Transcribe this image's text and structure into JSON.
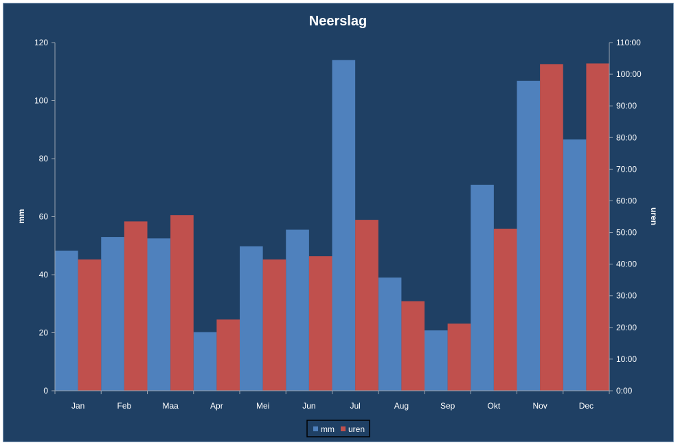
{
  "chart_data": {
    "type": "bar",
    "title": "Neerslag",
    "categories": [
      "Jan",
      "Feb",
      "Maa",
      "Apr",
      "Mei",
      "Jun",
      "Jul",
      "Aug",
      "Sep",
      "Okt",
      "Nov",
      "Dec"
    ],
    "y_left": {
      "label": "mm",
      "range": [
        0,
        120
      ],
      "ticks": [
        "0",
        "20",
        "40",
        "60",
        "80",
        "100",
        "120"
      ]
    },
    "y_right": {
      "label": "uren",
      "range_hours": [
        0,
        110
      ],
      "ticks": [
        "0:00",
        "10:00",
        "20:00",
        "30:00",
        "40:00",
        "50:00",
        "60:00",
        "70:00",
        "80:00",
        "90:00",
        "100:00",
        "110:00"
      ]
    },
    "series": [
      {
        "name": "mm",
        "axis": "left",
        "color": "#4f81bd",
        "values": [
          48.3,
          53.0,
          52.5,
          20.2,
          49.8,
          55.5,
          114.0,
          39.0,
          20.8,
          71.0,
          106.8,
          86.6
        ]
      },
      {
        "name": "uren",
        "axis": "right",
        "color": "#c0504d",
        "values": [
          41.5,
          53.5,
          55.5,
          22.5,
          41.5,
          42.5,
          54.0,
          28.3,
          21.2,
          51.2,
          103.2,
          103.4
        ]
      }
    ],
    "legend_position": "bottom",
    "grid": false
  }
}
